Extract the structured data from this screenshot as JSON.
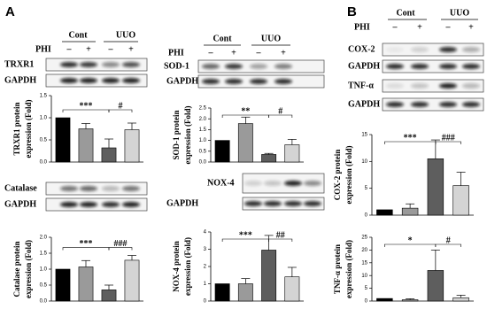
{
  "panel_labels": [
    "A",
    "B"
  ],
  "blots": [
    {
      "header": {
        "groups": [
          "Cont",
          "UUO"
        ],
        "treatment": "PHI",
        "signs": [
          "–",
          "+",
          "–",
          "+"
        ]
      },
      "rows": [
        "TRXR1",
        "GAPDH"
      ]
    },
    {
      "rows": [
        "Catalase",
        "GAPDH"
      ]
    },
    {
      "header": {
        "groups": [
          "Cont",
          "UUO"
        ],
        "treatment": "PHI",
        "signs": [
          "–",
          "+",
          "–",
          "+"
        ]
      },
      "rows": [
        "SOD-1",
        "GAPDH"
      ]
    },
    {
      "rows": [
        "NOX-4",
        "GAPDH"
      ]
    },
    {
      "header": {
        "groups": [
          "Cont",
          "UUO"
        ],
        "treatment": "PHI",
        "signs": [
          "–",
          "+",
          "–",
          "+"
        ]
      },
      "rows": [
        "COX-2",
        "GAPDH",
        "TNF-α",
        "GAPDH"
      ]
    }
  ],
  "chart_data": [
    {
      "type": "bar",
      "ylabel": [
        "TRXR1 protein",
        "expression (Fold)"
      ],
      "categories": [
        null,
        null,
        null,
        null
      ],
      "values": [
        1.0,
        0.75,
        0.32,
        0.73
      ],
      "errors": [
        0,
        0.12,
        0.2,
        0.15
      ],
      "colors": [
        "#000000",
        "#9a9a9a",
        "#5e5e5e",
        "#d4d4d4"
      ],
      "ylim": [
        0,
        1.5
      ],
      "yticks": [
        {
          "value": 0,
          "label": "0.0"
        },
        {
          "value": 0.5,
          "label": "0.5"
        },
        {
          "value": 1,
          "label": "1.0"
        },
        {
          "value": 1.5,
          "label": "1.5"
        }
      ],
      "annotations": [
        "***",
        "#"
      ]
    },
    {
      "type": "bar",
      "ylabel": [
        "SOD-1 protein",
        "expression (Fold)"
      ],
      "categories": [
        null,
        null,
        null,
        null
      ],
      "values": [
        1.0,
        1.78,
        0.35,
        0.8
      ],
      "errors": [
        0,
        0.3,
        0.05,
        0.25
      ],
      "colors": [
        "#000000",
        "#9a9a9a",
        "#5e5e5e",
        "#d4d4d4"
      ],
      "ylim": [
        0,
        2.5
      ],
      "yticks": [
        {
          "value": 0,
          "label": "0.0"
        },
        0.5,
        {
          "value": 1,
          "label": "1.0"
        },
        1.5,
        {
          "value": 2,
          "label": "2.0"
        },
        2.5
      ],
      "annotations": [
        "**",
        "#"
      ]
    },
    {
      "type": "bar",
      "ylabel": [
        "Catalase protein",
        "expression (Fold)"
      ],
      "categories": [
        null,
        null,
        null,
        null
      ],
      "values": [
        1.0,
        1.07,
        0.35,
        1.28
      ],
      "errors": [
        0,
        0.2,
        0.15,
        0.15
      ],
      "colors": [
        "#000000",
        "#9a9a9a",
        "#5e5e5e",
        "#d4d4d4"
      ],
      "ylim": [
        0,
        2
      ],
      "yticks": [
        {
          "value": 0,
          "label": "0.0"
        },
        0.5,
        {
          "value": 1,
          "label": "1.0"
        },
        1.5,
        {
          "value": 2,
          "label": "2.0"
        }
      ],
      "annotations": [
        "***",
        "###"
      ]
    },
    {
      "type": "bar",
      "ylabel": [
        "NOX-4 protein",
        "expression (Fold)"
      ],
      "categories": [
        null,
        null,
        null,
        null
      ],
      "values": [
        1.0,
        1.0,
        2.95,
        1.4
      ],
      "errors": [
        0,
        0.3,
        0.85,
        0.55
      ],
      "colors": [
        "#000000",
        "#9a9a9a",
        "#5e5e5e",
        "#d4d4d4"
      ],
      "ylim": [
        0,
        4
      ],
      "yticks": [
        0,
        1,
        2,
        3,
        4
      ],
      "annotations": [
        "***",
        "##"
      ]
    },
    {
      "type": "bar",
      "ylabel": [
        "COX-2 protein",
        "expression (Fold)"
      ],
      "categories": [
        null,
        null,
        null,
        null
      ],
      "values": [
        1.0,
        1.3,
        10.5,
        5.5
      ],
      "errors": [
        0,
        0.8,
        3.5,
        2.5
      ],
      "colors": [
        "#000000",
        "#9a9a9a",
        "#5e5e5e",
        "#d4d4d4"
      ],
      "ylim": [
        0,
        15
      ],
      "yticks": [
        0,
        5,
        10,
        15
      ],
      "annotations": [
        "***",
        "###"
      ]
    },
    {
      "type": "bar",
      "ylabel": [
        "TNF-α protein",
        "expression (Fold)"
      ],
      "categories": [
        null,
        null,
        null,
        null
      ],
      "values": [
        1.0,
        0.5,
        12,
        1.3
      ],
      "errors": [
        0,
        0.4,
        8,
        1.0
      ],
      "colors": [
        "#000000",
        "#9a9a9a",
        "#5e5e5e",
        "#d4d4d4"
      ],
      "ylim": [
        0,
        25
      ],
      "yticks": [
        0,
        5,
        10,
        15,
        20,
        25
      ],
      "annotations": [
        "*",
        "#"
      ]
    }
  ]
}
